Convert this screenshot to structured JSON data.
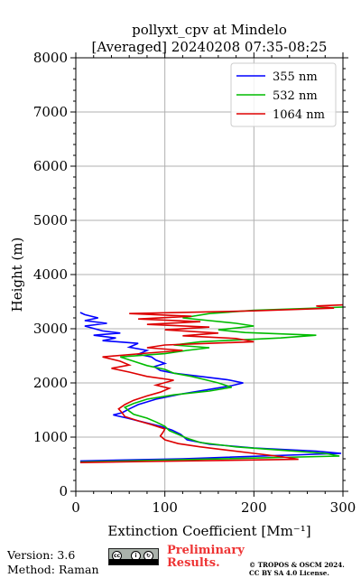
{
  "chart_data": {
    "type": "line",
    "title": [
      "pollyxt_cpv at Mindelo",
      "[Averaged] 20240208 07:35-08:25"
    ],
    "xlabel": "Extinction Coefficient [Mm⁻¹]",
    "ylabel": "Height (m)",
    "xlim": [
      0,
      300
    ],
    "ylim": [
      0,
      8000
    ],
    "xticks": [
      0,
      100,
      200,
      300
    ],
    "yticks": [
      0,
      1000,
      2000,
      3000,
      4000,
      5000,
      6000,
      7000,
      8000
    ],
    "grid": true,
    "legend_position": "top-right",
    "series": [
      {
        "name": "355 nm",
        "color": "#0000ff",
        "points": [
          [
            5,
            560
          ],
          [
            120,
            600
          ],
          [
            298,
            700
          ],
          [
            270,
            740
          ],
          [
            200,
            800
          ],
          [
            150,
            870
          ],
          [
            125,
            950
          ],
          [
            118,
            1050
          ],
          [
            108,
            1130
          ],
          [
            95,
            1200
          ],
          [
            75,
            1280
          ],
          [
            58,
            1350
          ],
          [
            42,
            1410
          ],
          [
            52,
            1450
          ],
          [
            60,
            1520
          ],
          [
            70,
            1600
          ],
          [
            90,
            1700
          ],
          [
            120,
            1800
          ],
          [
            150,
            1880
          ],
          [
            175,
            1950
          ],
          [
            188,
            2000
          ],
          [
            170,
            2060
          ],
          [
            140,
            2120
          ],
          [
            110,
            2180
          ],
          [
            95,
            2230
          ],
          [
            88,
            2300
          ],
          [
            100,
            2360
          ],
          [
            90,
            2420
          ],
          [
            85,
            2480
          ],
          [
            70,
            2530
          ],
          [
            80,
            2600
          ],
          [
            60,
            2660
          ],
          [
            70,
            2730
          ],
          [
            30,
            2780
          ],
          [
            45,
            2830
          ],
          [
            20,
            2880
          ],
          [
            50,
            2920
          ],
          [
            30,
            2960
          ],
          [
            10,
            3050
          ],
          [
            35,
            3100
          ],
          [
            10,
            3150
          ],
          [
            25,
            3200
          ],
          [
            10,
            3260
          ],
          [
            5,
            3300
          ]
        ]
      },
      {
        "name": "532 nm",
        "color": "#00bb00",
        "points": [
          [
            5,
            540
          ],
          [
            110,
            580
          ],
          [
            296,
            650
          ],
          [
            280,
            700
          ],
          [
            230,
            760
          ],
          [
            180,
            820
          ],
          [
            140,
            900
          ],
          [
            125,
            980
          ],
          [
            115,
            1050
          ],
          [
            105,
            1120
          ],
          [
            100,
            1200
          ],
          [
            90,
            1280
          ],
          [
            80,
            1350
          ],
          [
            65,
            1420
          ],
          [
            60,
            1480
          ],
          [
            55,
            1550
          ],
          [
            65,
            1620
          ],
          [
            80,
            1700
          ],
          [
            110,
            1780
          ],
          [
            150,
            1850
          ],
          [
            175,
            1920
          ],
          [
            160,
            2000
          ],
          [
            145,
            2060
          ],
          [
            130,
            2120
          ],
          [
            110,
            2180
          ],
          [
            100,
            2250
          ],
          [
            80,
            2320
          ],
          [
            65,
            2400
          ],
          [
            50,
            2480
          ],
          [
            100,
            2540
          ],
          [
            125,
            2600
          ],
          [
            150,
            2650
          ],
          [
            110,
            2700
          ],
          [
            140,
            2760
          ],
          [
            230,
            2830
          ],
          [
            270,
            2880
          ],
          [
            190,
            2930
          ],
          [
            160,
            2980
          ],
          [
            200,
            3050
          ],
          [
            180,
            3100
          ],
          [
            120,
            3200
          ],
          [
            150,
            3280
          ],
          [
            200,
            3340
          ],
          [
            270,
            3380
          ],
          [
            300,
            3400
          ]
        ]
      },
      {
        "name": "1064 nm",
        "color": "#dd0000",
        "points": [
          [
            5,
            530
          ],
          [
            80,
            550
          ],
          [
            250,
            590
          ],
          [
            230,
            640
          ],
          [
            200,
            700
          ],
          [
            170,
            760
          ],
          [
            140,
            820
          ],
          [
            115,
            880
          ],
          [
            100,
            950
          ],
          [
            95,
            1020
          ],
          [
            98,
            1090
          ],
          [
            100,
            1150
          ],
          [
            85,
            1230
          ],
          [
            70,
            1300
          ],
          [
            55,
            1380
          ],
          [
            52,
            1450
          ],
          [
            48,
            1520
          ],
          [
            55,
            1600
          ],
          [
            65,
            1680
          ],
          [
            80,
            1760
          ],
          [
            95,
            1830
          ],
          [
            105,
            1900
          ],
          [
            90,
            1960
          ],
          [
            110,
            2050
          ],
          [
            80,
            2120
          ],
          [
            60,
            2200
          ],
          [
            40,
            2270
          ],
          [
            60,
            2330
          ],
          [
            50,
            2400
          ],
          [
            30,
            2480
          ],
          [
            80,
            2550
          ],
          [
            120,
            2600
          ],
          [
            80,
            2650
          ],
          [
            100,
            2700
          ],
          [
            200,
            2760
          ],
          [
            180,
            2820
          ],
          [
            120,
            2870
          ],
          [
            160,
            2920
          ],
          [
            100,
            2980
          ],
          [
            150,
            3030
          ],
          [
            80,
            3080
          ],
          [
            140,
            3130
          ],
          [
            70,
            3180
          ],
          [
            130,
            3230
          ],
          [
            60,
            3280
          ],
          [
            200,
            3330
          ],
          [
            290,
            3380
          ],
          [
            270,
            3420
          ],
          [
            300,
            3440
          ]
        ]
      }
    ]
  },
  "footer": {
    "version": "Version: 3.6",
    "method": "Method: Raman",
    "license_badge": "cc-by-sa-badge",
    "preliminary_line1": "Preliminary",
    "preliminary_line2": "Results.",
    "copyright_line1": "© TROPOS & OSCM 2024.",
    "copyright_line2": "CC BY SA 4.0 License."
  }
}
